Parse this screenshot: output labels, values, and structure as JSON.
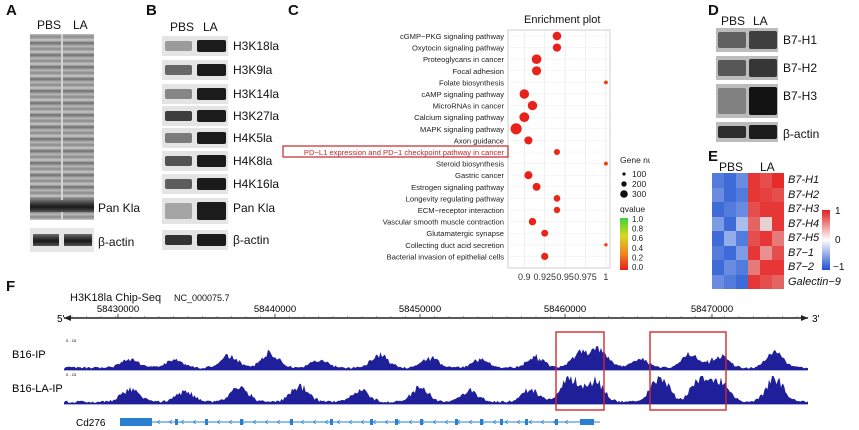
{
  "panels": {
    "A": "A",
    "B": "B",
    "C": "C",
    "D": "D",
    "E": "E",
    "F": "F"
  },
  "panel_a": {
    "pbs": "PBS",
    "la": "LA",
    "pan_kla": "Pan Kla",
    "actin": "β-actin"
  },
  "panel_b": {
    "pbs": "PBS",
    "la": "LA",
    "rows": [
      "H3K18la",
      "H3K9la",
      "H3K14la",
      "H3K27la",
      "H4K5la",
      "H4K8la",
      "H4K16la",
      "Pan Kla",
      "β-actin"
    ]
  },
  "panel_d": {
    "pbs": "PBS",
    "la": "LA",
    "rows": [
      "B7-H1",
      "B7-H2",
      "B7-H3",
      "β-actin"
    ]
  },
  "chart_data": {
    "type": "scatter",
    "title": "Enrichment plot",
    "pathways": [
      "cGMP−PKG signaling pathway",
      "Oxytocin signaling pathway",
      "Proteoglycans in cancer",
      "Focal adhesion",
      "Folate biosynthesis",
      "cAMP signaling pathway",
      "MicroRNAs in cancer",
      "Calcium signaling pathway",
      "MAPK signaling pathway",
      "Axon guidance",
      "PD−L1 expression and PD−1 checkpoint pathway in cancer",
      "Steroid biosynthesis",
      "Gastric cancer",
      "Estrogen signaling pathway",
      "Longevity regulating pathway",
      "ECM−receptor interaction",
      "Vascular smooth muscle contraction",
      "Glutamatergic synapse",
      "Collecting duct acid secretion",
      "Bacterial invasion of epithelial cells"
    ],
    "x": [
      0.94,
      0.94,
      0.915,
      0.915,
      1.0,
      0.9,
      0.91,
      0.9,
      0.89,
      0.905,
      0.94,
      1.0,
      0.905,
      0.915,
      0.94,
      0.94,
      0.91,
      0.925,
      1.0,
      0.925
    ],
    "gene_number": [
      170,
      150,
      230,
      200,
      10,
      220,
      210,
      240,
      330,
      140,
      60,
      10,
      140,
      130,
      80,
      70,
      110,
      90,
      5,
      100
    ],
    "xticks": [
      "0.9",
      "0.925",
      "0.95",
      "0.975",
      "1"
    ],
    "xlim": [
      0.88,
      1.005
    ],
    "highlight": "PD−L1 expression and PD−1 checkpoint pathway in cancer",
    "size_legend_title": "Gene number",
    "size_legend": [
      "100",
      "200",
      "300"
    ],
    "color_legend_title": "qvalue",
    "color_legend": [
      "1.0",
      "0.8",
      "0.6",
      "0.4",
      "0.2",
      "0.0"
    ]
  },
  "panel_e": {
    "pbs": "PBS",
    "la": "LA",
    "genes": [
      "B7-H1",
      "B7-H2",
      "B7-H3",
      "B7-H4",
      "B7-H5",
      "B7−1",
      "B7−2",
      "Galectin−9"
    ],
    "scale": [
      "1",
      "0",
      "−1"
    ],
    "matrix": [
      [
        -0.8,
        -0.9,
        -0.7,
        0.9,
        0.8,
        0.95
      ],
      [
        -0.7,
        -0.9,
        -0.8,
        0.9,
        0.85,
        0.8
      ],
      [
        -0.9,
        -0.8,
        -0.7,
        0.8,
        0.9,
        0.9
      ],
      [
        -0.6,
        -0.9,
        -0.4,
        0.7,
        0.2,
        0.9
      ],
      [
        -0.9,
        -0.5,
        -0.8,
        0.8,
        0.9,
        0.6
      ],
      [
        -0.8,
        -0.9,
        -0.6,
        0.9,
        0.5,
        0.8
      ],
      [
        -0.9,
        -0.7,
        -0.8,
        0.6,
        0.9,
        0.9
      ],
      [
        -0.7,
        -0.8,
        -0.9,
        0.9,
        0.8,
        0.7
      ]
    ]
  },
  "panel_f": {
    "title": "H3K18la Chip-Seq",
    "accession": "NC_000075.7",
    "five_prime": "5'",
    "three_prime": "3'",
    "positions": [
      "58430000",
      "58440000",
      "58450000",
      "58460000",
      "58470000"
    ],
    "tracks": [
      "B16-IP",
      "B16-LA-IP"
    ],
    "scale_tag": "0 - 15",
    "gene": "Cd276"
  }
}
